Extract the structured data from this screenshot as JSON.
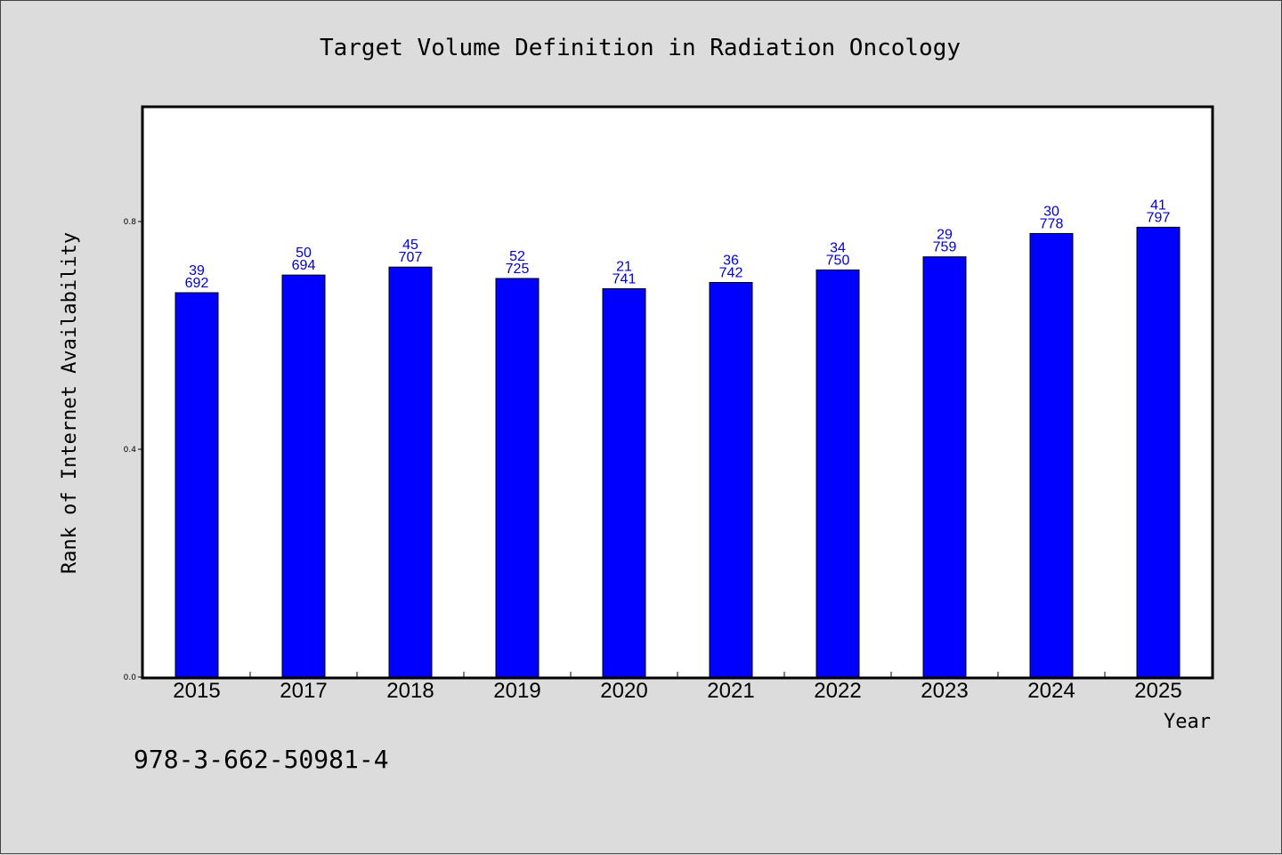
{
  "chart_data": {
    "type": "bar",
    "title": "Target Volume Definition in Radiation Oncology",
    "xlabel": "Year",
    "ylabel": "Rank of Internet Availability",
    "categories": [
      "2015",
      "2017",
      "2018",
      "2019",
      "2020",
      "2021",
      "2022",
      "2023",
      "2024",
      "2025"
    ],
    "values": [
      0.675,
      0.706,
      0.72,
      0.7,
      0.682,
      0.693,
      0.715,
      0.738,
      0.779,
      0.79
    ],
    "labels_top": [
      "39",
      "50",
      "45",
      "52",
      "21",
      "36",
      "34",
      "29",
      "30",
      "41"
    ],
    "labels_bottom": [
      "692",
      "694",
      "707",
      "725",
      "741",
      "742",
      "750",
      "759",
      "778",
      "797"
    ],
    "yticks": [
      "0.0",
      "0.4",
      "0.8"
    ],
    "ytick_values": [
      0.0,
      0.4,
      0.8
    ],
    "ylim": [
      0,
      1.0
    ],
    "bar_color": "#0000ff",
    "label_color": "#0000cc",
    "grid": false
  },
  "footer": {
    "isbn": "978-3-662-50981-4"
  }
}
